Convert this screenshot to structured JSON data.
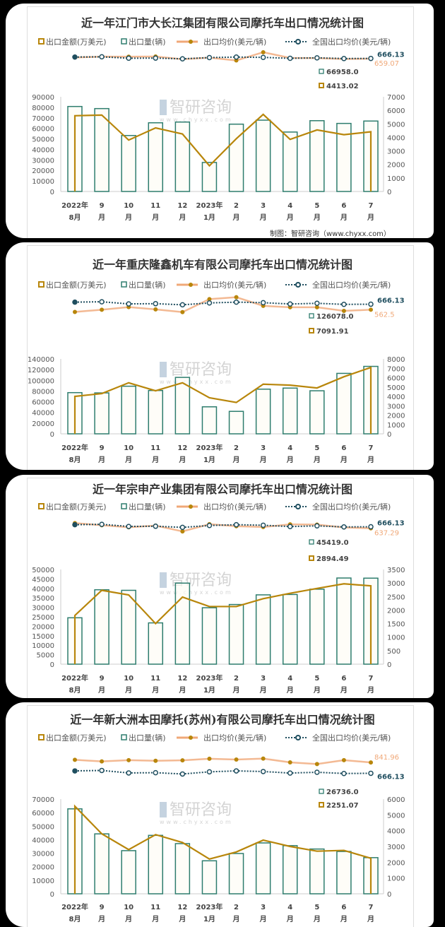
{
  "legend": {
    "amount": "出口金额(万美元)",
    "volume": "出口量(辆)",
    "avg_price": "出口均价(美元/辆)",
    "national_price": "全国出口均价(美元/辆)"
  },
  "colors": {
    "amount": "#b8860b",
    "volume": "#2e7d6e",
    "avg_price": "#f0a878",
    "national_price": "#1f4e5f",
    "bar_fill": "#fdfcf4"
  },
  "watermark": "智研咨询",
  "watermark_url": "www.chyxx.com",
  "credit": "制图：智研咨询（www.chyxx.com）",
  "chart_data": [
    {
      "type": "bar+line",
      "title": "近一年江门市大长江集团有限公司摩托车出口情况统计图",
      "categories": [
        [
          "2022年",
          "8月"
        ],
        [
          "9",
          "月"
        ],
        [
          "10",
          "月"
        ],
        [
          "11",
          "月"
        ],
        [
          "12",
          "月"
        ],
        [
          "2023年",
          "1月"
        ],
        [
          "2",
          "月"
        ],
        [
          "3",
          "月"
        ],
        [
          "4",
          "月"
        ],
        [
          "5",
          "月"
        ],
        [
          "6",
          "月"
        ],
        [
          "7",
          "月"
        ]
      ],
      "ylim_left": [
        0,
        90000
      ],
      "yticks_left": [
        "0",
        "10000",
        "20000",
        "30000",
        "40000",
        "50000",
        "60000",
        "70000",
        "80000",
        "90000"
      ],
      "ylim_right": [
        0,
        7000
      ],
      "yticks_right": [
        "0",
        "1000",
        "2000",
        "3000",
        "4000",
        "5000",
        "6000",
        "7000"
      ],
      "volume": [
        80800,
        78800,
        53200,
        65300,
        66000,
        27600,
        64000,
        67800,
        56500,
        67300,
        64700,
        66958.0
      ],
      "amount": [
        5600,
        5650,
        3800,
        4700,
        4250,
        1900,
        3900,
        5700,
        3850,
        4550,
        4200,
        4413.02
      ],
      "avg_price": [
        693,
        717,
        714,
        720,
        644,
        688,
        609,
        841,
        681,
        676,
        649,
        659.07
      ],
      "national_price": [
        705,
        712,
        672,
        676,
        655,
        690,
        705,
        695,
        670,
        683,
        663,
        666.13
      ],
      "labels": {
        "volume_last": "66958.0",
        "amount_last": "4413.02",
        "avg_price_last": "659.07",
        "national_price_last": "666.13"
      }
    },
    {
      "type": "bar+line",
      "title": "近一年重庆隆鑫机车有限公司摩托车出口情况统计图",
      "categories": [
        [
          "2022年",
          "8月"
        ],
        [
          "9",
          "月"
        ],
        [
          "10",
          "月"
        ],
        [
          "11",
          "月"
        ],
        [
          "12",
          "月"
        ],
        [
          "2023年",
          "1月"
        ],
        [
          "2",
          "月"
        ],
        [
          "3",
          "月"
        ],
        [
          "4",
          "月"
        ],
        [
          "5",
          "月"
        ],
        [
          "6",
          "月"
        ],
        [
          "7",
          "月"
        ]
      ],
      "ylim_left": [
        0,
        140000
      ],
      "yticks_left": [
        "0",
        "20000",
        "40000",
        "60000",
        "80000",
        "100000",
        "120000",
        "140000"
      ],
      "ylim_right": [
        0,
        8000
      ],
      "yticks_right": [
        "0",
        "1000",
        "2000",
        "3000",
        "4000",
        "5000",
        "6000",
        "7000",
        "8000"
      ],
      "volume": [
        77000,
        76500,
        89000,
        81000,
        105500,
        50500,
        42000,
        83500,
        85500,
        80500,
        113000,
        126078.0
      ],
      "amount": [
        4000,
        4300,
        5450,
        4600,
        5450,
        3850,
        3350,
        5300,
        5200,
        4900,
        6100,
        7091.91
      ],
      "avg_price": [
        520,
        562,
        612,
        568,
        517,
        762,
        798,
        635,
        608,
        609,
        540,
        562.5
      ],
      "national_price": [
        705,
        712,
        672,
        676,
        655,
        690,
        705,
        695,
        670,
        683,
        663,
        666.13
      ],
      "labels": {
        "volume_last": "126078.0",
        "amount_last": "7091.91",
        "avg_price_last": "562.5",
        "national_price_last": "666.13"
      }
    },
    {
      "type": "bar+line",
      "title": "近一年宗申产业集团有限公司摩托车出口情况统计图",
      "categories": [
        [
          "2022年",
          "8月"
        ],
        [
          "9",
          "月"
        ],
        [
          "10",
          "月"
        ],
        [
          "11",
          "月"
        ],
        [
          "12",
          "月"
        ],
        [
          "2023年",
          "1月"
        ],
        [
          "2",
          "月"
        ],
        [
          "3",
          "月"
        ],
        [
          "4",
          "月"
        ],
        [
          "5",
          "月"
        ],
        [
          "6",
          "月"
        ],
        [
          "7",
          "月"
        ]
      ],
      "ylim_left": [
        0,
        50000
      ],
      "yticks_left": [
        "0",
        "5000",
        "10000",
        "15000",
        "20000",
        "25000",
        "30000",
        "35000",
        "40000",
        "45000",
        "50000"
      ],
      "ylim_right": [
        0,
        3500
      ],
      "yticks_right": [
        "0",
        "500",
        "1000",
        "1500",
        "2000",
        "2500",
        "3000",
        "3500"
      ],
      "volume": [
        24500,
        39300,
        39000,
        21800,
        42800,
        29800,
        31500,
        36600,
        36800,
        39600,
        45500,
        45419.0
      ],
      "amount": [
        1800,
        2730,
        2560,
        1500,
        2480,
        2130,
        2130,
        2420,
        2620,
        2800,
        2970,
        2894.49
      ],
      "avg_price": [
        735,
        695,
        656,
        688,
        579,
        715,
        676,
        661,
        712,
        707,
        653,
        637.29
      ],
      "national_price": [
        705,
        712,
        672,
        676,
        655,
        690,
        705,
        695,
        670,
        683,
        663,
        666.13
      ],
      "labels": {
        "volume_last": "45419.0",
        "amount_last": "2894.49",
        "avg_price_last": "637.29",
        "national_price_last": "666.13"
      }
    },
    {
      "type": "bar+line",
      "title": "近一年新大洲本田摩托(苏州)有限公司摩托车出口情况统计图",
      "categories": [
        [
          "2022年",
          "8月"
        ],
        [
          "9",
          "月"
        ],
        [
          "10",
          "月"
        ],
        [
          "11",
          "月"
        ],
        [
          "12",
          "月"
        ],
        [
          "2023年",
          "1月"
        ],
        [
          "2",
          "月"
        ],
        [
          "3",
          "月"
        ],
        [
          "4",
          "月"
        ],
        [
          "5",
          "月"
        ],
        [
          "6",
          "月"
        ],
        [
          "7",
          "月"
        ]
      ],
      "ylim_left": [
        0,
        70000
      ],
      "yticks_left": [
        "0",
        "10000",
        "20000",
        "30000",
        "40000",
        "50000",
        "60000",
        "70000"
      ],
      "ylim_right": [
        0,
        6000
      ],
      "yticks_right": [
        "0",
        "1000",
        "2000",
        "3000",
        "4000",
        "5000",
        "6000"
      ],
      "volume": [
        62800,
        44300,
        31900,
        43200,
        37100,
        24400,
        29800,
        37600,
        35600,
        33100,
        31300,
        26736.0
      ],
      "amount": [
        5550,
        3800,
        2800,
        3750,
        3250,
        2200,
        2650,
        3400,
        3000,
        2700,
        2750,
        2251.07
      ],
      "avg_price": [
        884,
        858,
        878,
        868,
        876,
        902,
        889,
        904,
        843,
        816,
        879,
        841.96
      ],
      "national_price": [
        705,
        712,
        672,
        676,
        655,
        690,
        705,
        695,
        670,
        683,
        663,
        666.13
      ],
      "labels": {
        "volume_last": "26736.0",
        "amount_last": "2251.07",
        "avg_price_last": "841.96",
        "national_price_last": "666.13"
      }
    }
  ]
}
